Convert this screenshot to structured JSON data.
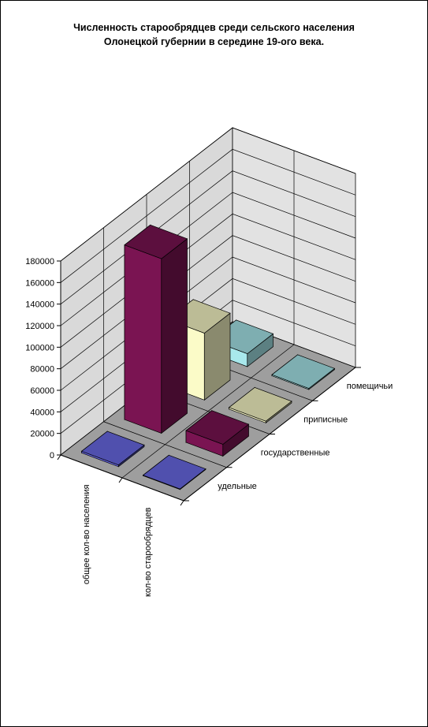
{
  "chart_data": {
    "type": "bar",
    "title": "Численность старообрядцев среди сельского населения\nОлонецкой губернии в середине 19-ого века.",
    "categories": [
      "общее кол-во населения",
      "кол-во старообрядцев"
    ],
    "y_ticks": [
      "0",
      "20000",
      "40000",
      "60000",
      "80000",
      "100000",
      "120000",
      "140000",
      "160000",
      "180000"
    ],
    "ylim": [
      0,
      180000
    ],
    "series": [
      {
        "name": "удельные",
        "values": [
          1500,
          500
        ],
        "color": "#6a6ae8"
      },
      {
        "name": "государственные",
        "values": [
          162000,
          11000
        ],
        "color": "#7a1452"
      },
      {
        "name": "приписные",
        "values": [
          62000,
          1500
        ],
        "color": "#fbfbc8"
      },
      {
        "name": "помещичьи",
        "values": [
          12000,
          1000
        ],
        "color": "#a8e8ec"
      }
    ],
    "grid": true,
    "projection": "3d"
  }
}
